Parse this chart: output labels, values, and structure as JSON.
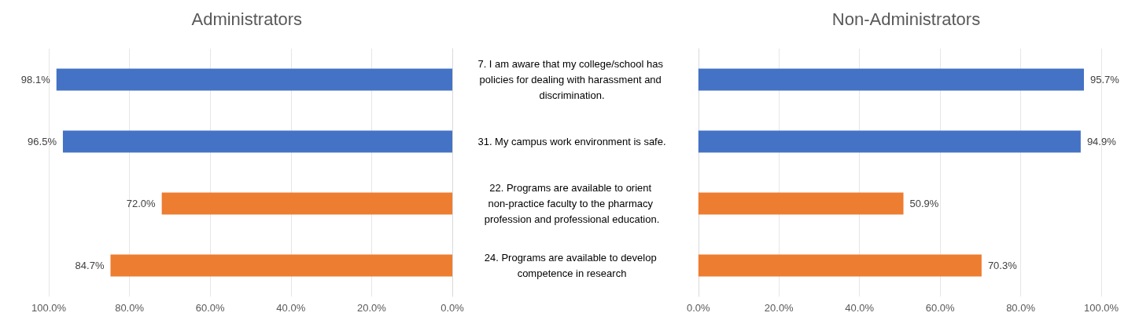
{
  "chart_data": [
    {
      "type": "bar",
      "orientation": "horizontal",
      "title": "Administrators",
      "categories": [
        "7. I am aware that my college/school has policies for dealing with harassment and discrimination.",
        "31. My campus work environment is safe.",
        "22. Programs are available to orient non-practice faculty to the pharmacy profession and professional education.",
        "24. Programs are available to develop competence in research"
      ],
      "values": [
        98.1,
        96.5,
        72.0,
        84.7
      ],
      "colors": [
        "#4472c4",
        "#4472c4",
        "#ed7d31",
        "#ed7d31"
      ],
      "xlim": [
        100,
        0
      ],
      "xticks": [
        {
          "value": 100,
          "label": "100.0%"
        },
        {
          "value": 80,
          "label": "80.0%"
        },
        {
          "value": 60,
          "label": "60.0%"
        },
        {
          "value": 40,
          "label": "40.0%"
        },
        {
          "value": 20,
          "label": "20.0%"
        },
        {
          "value": 0,
          "label": "0.0%"
        }
      ],
      "value_labels": [
        "98.1%",
        "96.5%",
        "72.0%",
        "84.7%"
      ],
      "grid": "x"
    },
    {
      "type": "bar",
      "orientation": "horizontal",
      "title": "Non-Administrators",
      "categories": [
        null,
        null,
        null,
        null
      ],
      "values": [
        95.7,
        94.9,
        50.9,
        70.3
      ],
      "colors": [
        "#4472c4",
        "#4472c4",
        "#ed7d31",
        "#ed7d31"
      ],
      "xlim": [
        0,
        100
      ],
      "xticks": [
        {
          "value": 0,
          "label": "0.0%"
        },
        {
          "value": 20,
          "label": "20.0%"
        },
        {
          "value": 40,
          "label": "40.0%"
        },
        {
          "value": 60,
          "label": "60.0%"
        },
        {
          "value": 80,
          "label": "80.0%"
        },
        {
          "value": 100,
          "label": "100.0%"
        }
      ],
      "value_labels": [
        "95.7%",
        "94.9%",
        "50.9%",
        "70.3%"
      ],
      "grid": "x",
      "tick_labels": "x"
    }
  ]
}
